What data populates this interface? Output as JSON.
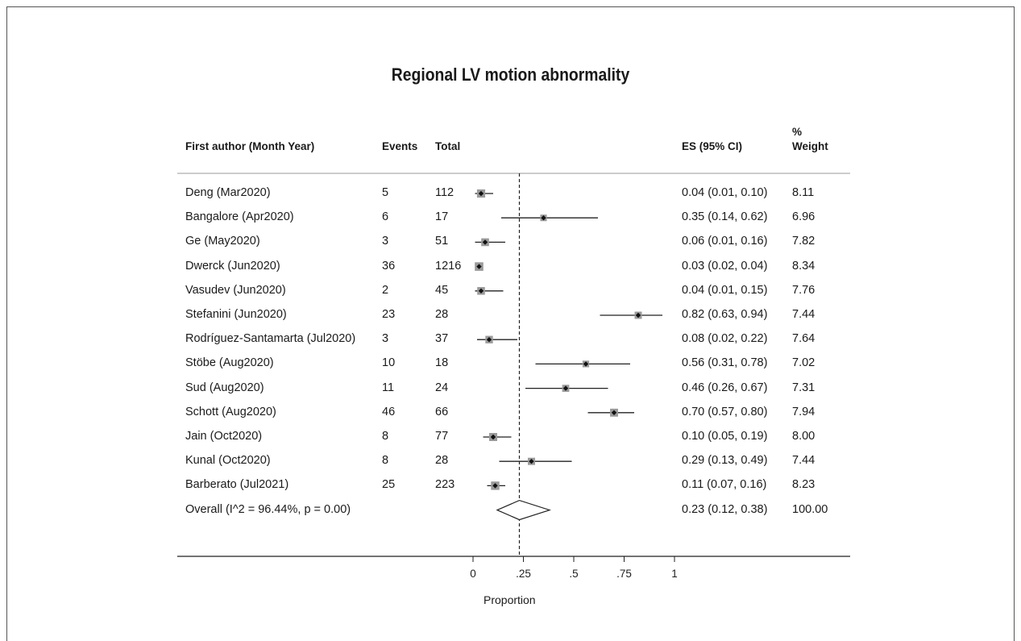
{
  "chart_data": {
    "type": "forest",
    "title": "Regional LV motion abnormality",
    "columns": {
      "author": "First author (Month Year)",
      "events": "Events",
      "total": "Total",
      "es": "ES (95% CI)",
      "weight_line1": "%",
      "weight_line2": "Weight"
    },
    "xlabel": "Proportion",
    "xlim": [
      0,
      1
    ],
    "xticks": [
      {
        "value": 0,
        "label": "0"
      },
      {
        "value": 0.25,
        "label": ".25"
      },
      {
        "value": 0.5,
        "label": ".5"
      },
      {
        "value": 0.75,
        "label": ".75"
      },
      {
        "value": 1,
        "label": "1"
      }
    ],
    "reference_line": 0.23,
    "studies": [
      {
        "author": "Deng (Mar2020)",
        "events": "5",
        "total": "112",
        "es": 0.04,
        "lo": 0.01,
        "hi": 0.1,
        "es_text": "0.04 (0.01, 0.10)",
        "weight": "8.11"
      },
      {
        "author": "Bangalore (Apr2020)",
        "events": "6",
        "total": "17",
        "es": 0.35,
        "lo": 0.14,
        "hi": 0.62,
        "es_text": "0.35 (0.14, 0.62)",
        "weight": "6.96"
      },
      {
        "author": "Ge (May2020)",
        "events": "3",
        "total": "51",
        "es": 0.06,
        "lo": 0.01,
        "hi": 0.16,
        "es_text": "0.06 (0.01, 0.16)",
        "weight": "7.82"
      },
      {
        "author": "Dwerck (Jun2020)",
        "events": "36",
        "total": "1216",
        "es": 0.03,
        "lo": 0.02,
        "hi": 0.04,
        "es_text": "0.03 (0.02, 0.04)",
        "weight": "8.34"
      },
      {
        "author": "Vasudev (Jun2020)",
        "events": "2",
        "total": "45",
        "es": 0.04,
        "lo": 0.01,
        "hi": 0.15,
        "es_text": "0.04 (0.01, 0.15)",
        "weight": "7.76"
      },
      {
        "author": "Stefanini (Jun2020)",
        "events": "23",
        "total": "28",
        "es": 0.82,
        "lo": 0.63,
        "hi": 0.94,
        "es_text": "0.82 (0.63, 0.94)",
        "weight": "7.44"
      },
      {
        "author": "Rodríguez-Santamarta (Jul2020)",
        "events": "3",
        "total": "37",
        "es": 0.08,
        "lo": 0.02,
        "hi": 0.22,
        "es_text": "0.08 (0.02, 0.22)",
        "weight": "7.64"
      },
      {
        "author": "Stöbe (Aug2020)",
        "events": "10",
        "total": "18",
        "es": 0.56,
        "lo": 0.31,
        "hi": 0.78,
        "es_text": "0.56 (0.31, 0.78)",
        "weight": "7.02"
      },
      {
        "author": "Sud (Aug2020)",
        "events": "11",
        "total": "24",
        "es": 0.46,
        "lo": 0.26,
        "hi": 0.67,
        "es_text": "0.46 (0.26, 0.67)",
        "weight": "7.31"
      },
      {
        "author": "Schott (Aug2020)",
        "events": "46",
        "total": "66",
        "es": 0.7,
        "lo": 0.57,
        "hi": 0.8,
        "es_text": "0.70 (0.57, 0.80)",
        "weight": "7.94"
      },
      {
        "author": "Jain (Oct2020)",
        "events": "8",
        "total": "77",
        "es": 0.1,
        "lo": 0.05,
        "hi": 0.19,
        "es_text": "0.10 (0.05, 0.19)",
        "weight": "8.00"
      },
      {
        "author": "Kunal (Oct2020)",
        "events": "8",
        "total": "28",
        "es": 0.29,
        "lo": 0.13,
        "hi": 0.49,
        "es_text": "0.29 (0.13, 0.49)",
        "weight": "7.44"
      },
      {
        "author": "Barberato (Jul2021)",
        "events": "25",
        "total": "223",
        "es": 0.11,
        "lo": 0.07,
        "hi": 0.16,
        "es_text": "0.11 (0.07, 0.16)",
        "weight": "8.23"
      }
    ],
    "overall": {
      "label": "Overall  (I^2 = 96.44%, p = 0.00)",
      "es": 0.23,
      "lo": 0.12,
      "hi": 0.38,
      "es_text": "0.23 (0.12, 0.38)",
      "weight": "100.00"
    }
  }
}
